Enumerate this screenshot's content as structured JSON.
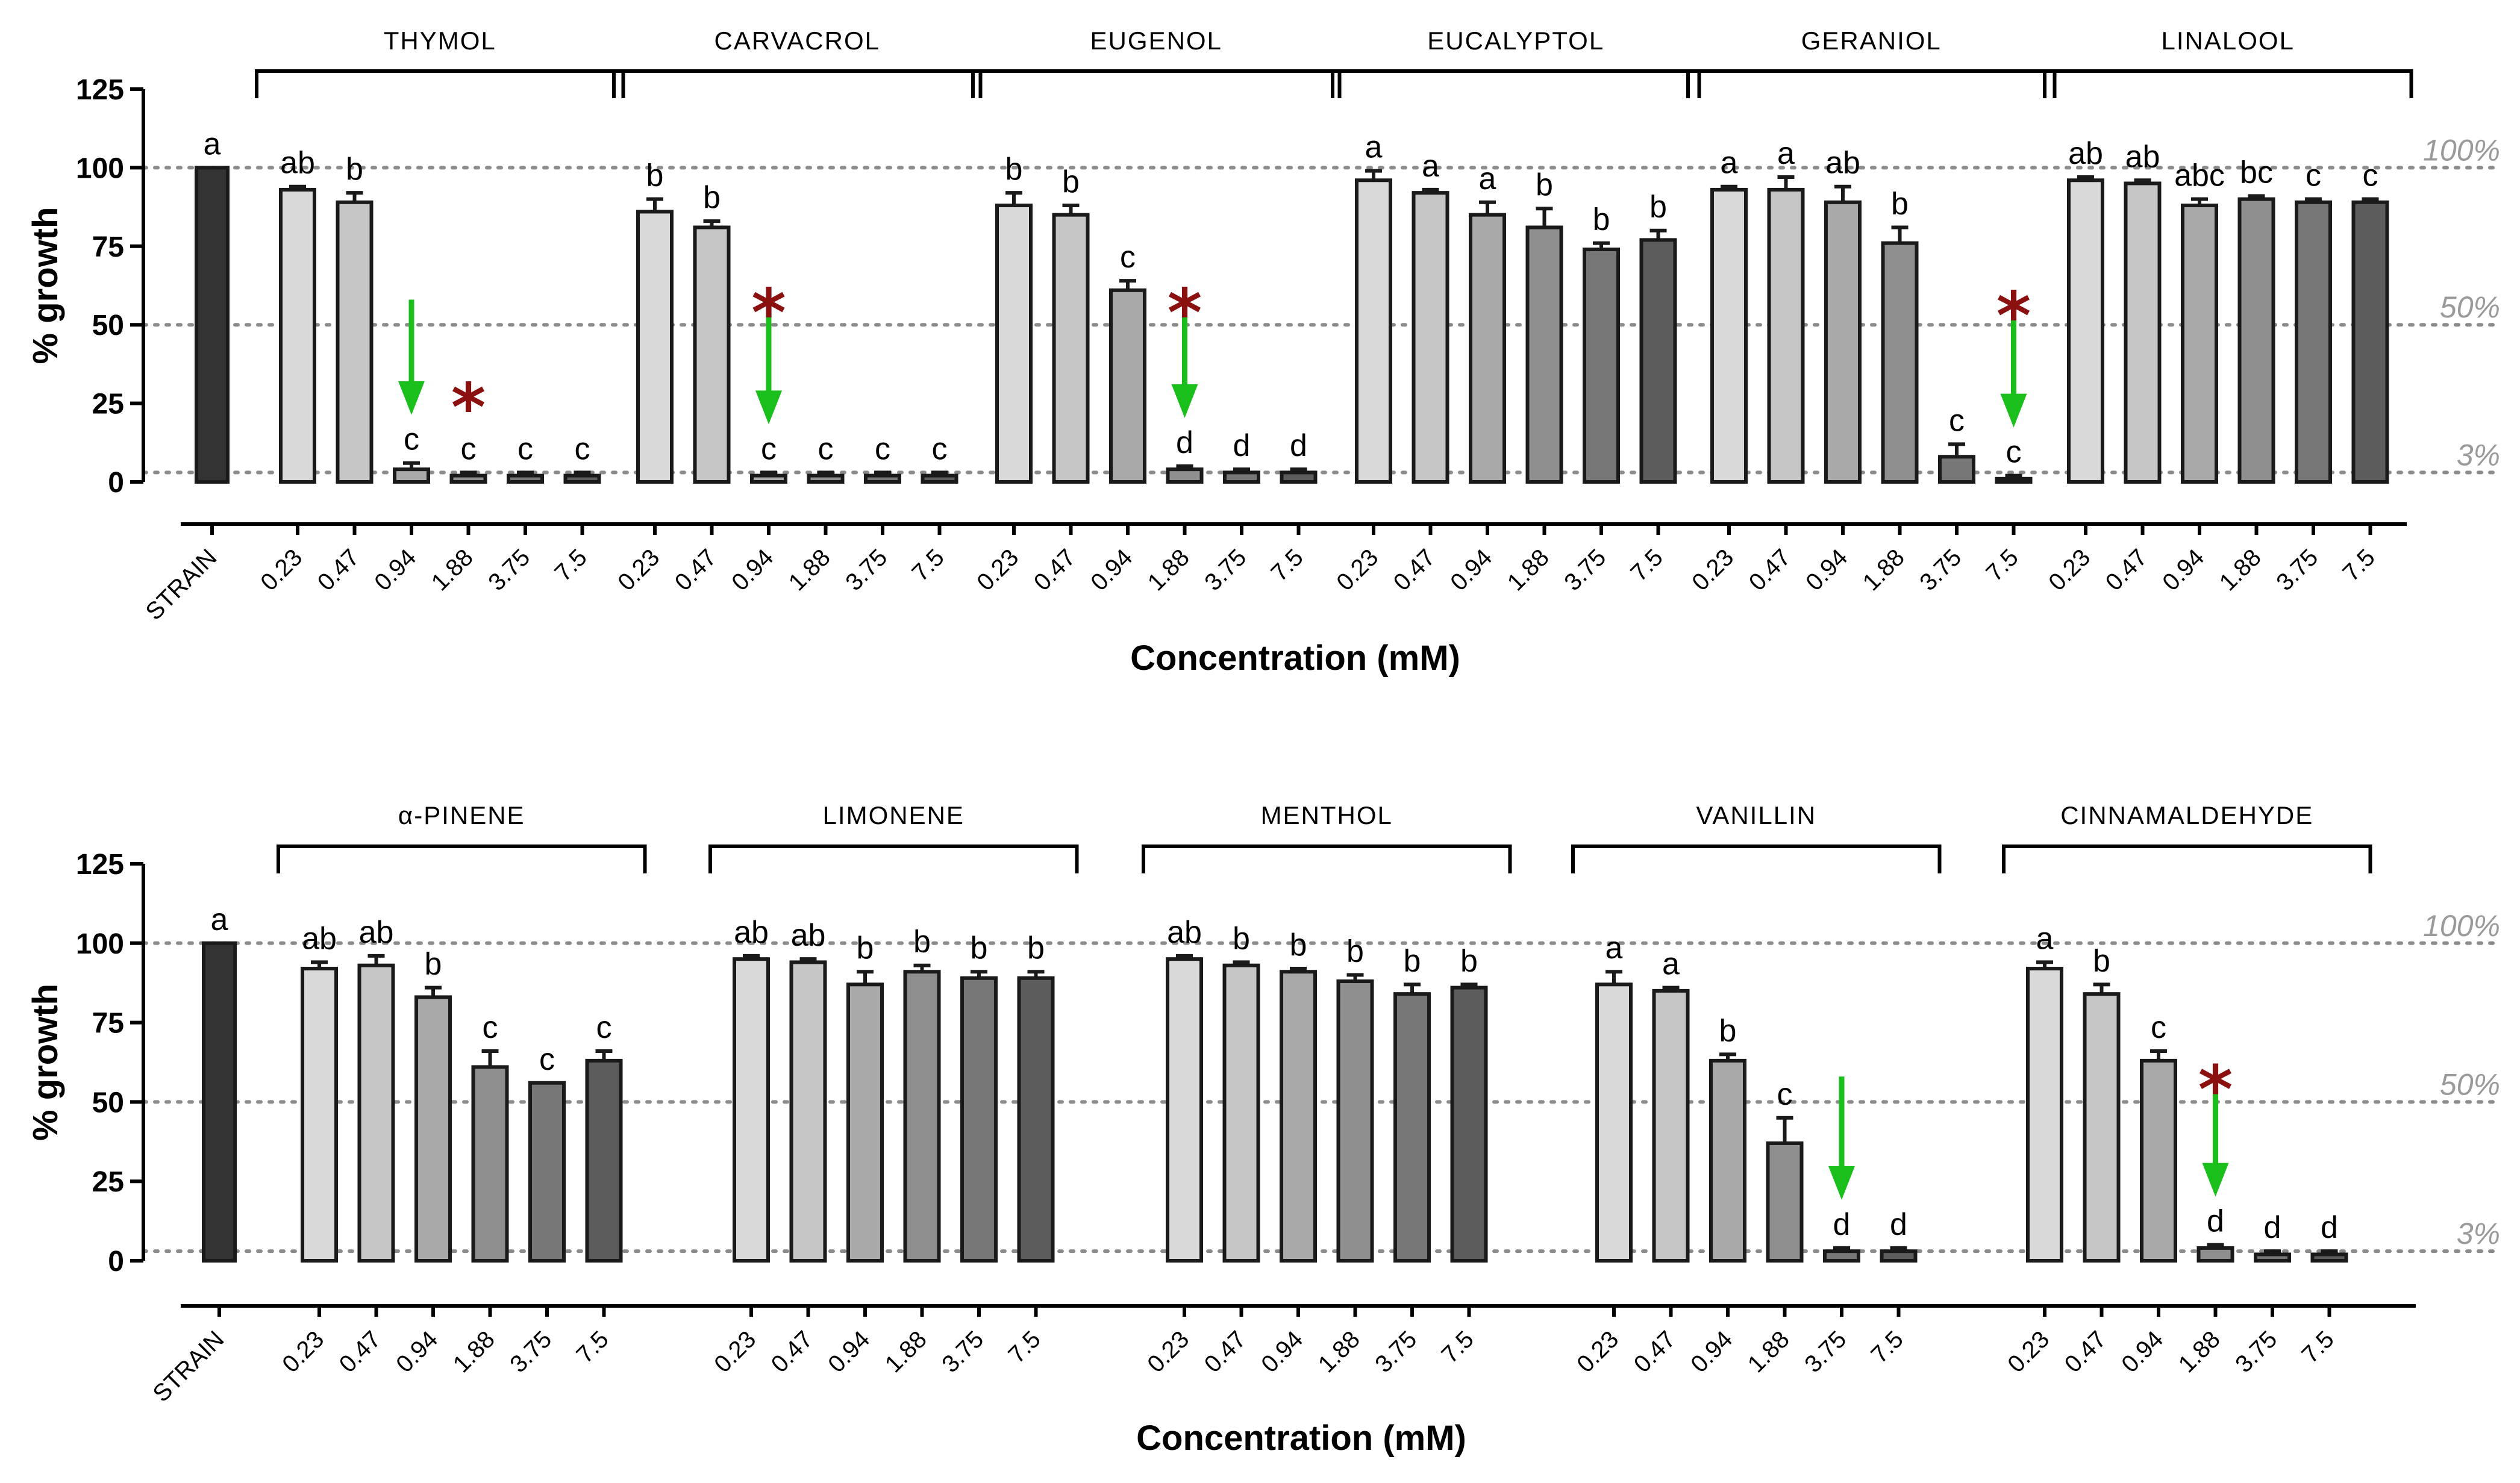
{
  "chart_data": [
    {
      "type": "bar",
      "xlabel": "Concentration (mM)",
      "ylabel": "% growth",
      "ylim": [
        0,
        125
      ],
      "yticks": [
        0,
        25,
        50,
        75,
        100,
        125
      ],
      "reference_lines": [
        {
          "value": 100,
          "label": "100%"
        },
        {
          "value": 50,
          "label": "50%"
        },
        {
          "value": 3,
          "label": "3%"
        }
      ],
      "control": {
        "label": "STRAIN",
        "value": 100,
        "error": 0,
        "sig": "a"
      },
      "concentrations": [
        "0.23",
        "0.47",
        "0.94",
        "1.88",
        "3.75",
        "7.5"
      ],
      "groups": [
        {
          "name": "THYMOL",
          "values": [
            93,
            89,
            4,
            2,
            2,
            2
          ],
          "errors": [
            1,
            3,
            2,
            1,
            1,
            1
          ],
          "sig": [
            "ab",
            "b",
            "c",
            "c",
            "c",
            "c"
          ],
          "arrow_index": 2,
          "star_index": 3
        },
        {
          "name": "CARVACROL",
          "values": [
            86,
            81,
            2,
            2,
            2,
            2
          ],
          "errors": [
            4,
            2,
            1,
            1,
            1,
            1
          ],
          "sig": [
            "b",
            "b",
            "c",
            "c",
            "c",
            "c"
          ],
          "arrow_index": 2,
          "star_index": 2
        },
        {
          "name": "EUGENOL",
          "values": [
            88,
            85,
            61,
            4,
            3,
            3
          ],
          "errors": [
            4,
            3,
            3,
            1,
            1,
            1
          ],
          "sig": [
            "b",
            "b",
            "c",
            "d",
            "d",
            "d"
          ],
          "arrow_index": 3,
          "star_index": 3
        },
        {
          "name": "EUCALYPTOL",
          "values": [
            96,
            92,
            85,
            81,
            74,
            77
          ],
          "errors": [
            3,
            1,
            4,
            6,
            2,
            3
          ],
          "sig": [
            "a",
            "a",
            "a",
            "b",
            "b",
            "b"
          ],
          "arrow_index": null,
          "star_index": null
        },
        {
          "name": "GERANIOL",
          "values": [
            93,
            93,
            89,
            76,
            8,
            1
          ],
          "errors": [
            1,
            4,
            5,
            5,
            4,
            1
          ],
          "sig": [
            "a",
            "a",
            "ab",
            "b",
            "c",
            "c"
          ],
          "arrow_index": 5,
          "star_index": 5
        },
        {
          "name": "LINALOOL",
          "values": [
            96,
            95,
            88,
            90,
            89,
            89
          ],
          "errors": [
            1,
            1,
            2,
            1,
            1,
            1
          ],
          "sig": [
            "ab",
            "ab",
            "abc",
            "bc",
            "c",
            "c"
          ],
          "arrow_index": null,
          "star_index": null
        }
      ]
    },
    {
      "type": "bar",
      "xlabel": "Concentration (mM)",
      "ylabel": "% growth",
      "ylim": [
        0,
        125
      ],
      "yticks": [
        0,
        25,
        50,
        75,
        100,
        125
      ],
      "reference_lines": [
        {
          "value": 100,
          "label": "100%"
        },
        {
          "value": 50,
          "label": "50%"
        },
        {
          "value": 3,
          "label": "3%"
        }
      ],
      "control": {
        "label": "STRAIN",
        "value": 100,
        "error": 0,
        "sig": "a"
      },
      "concentrations": [
        "0.23",
        "0.47",
        "0.94",
        "1.88",
        "3.75",
        "7.5"
      ],
      "groups": [
        {
          "name": "α-PINENE",
          "values": [
            92,
            93,
            83,
            61,
            56,
            63
          ],
          "errors": [
            2,
            3,
            3,
            5,
            0,
            3
          ],
          "sig": [
            "ab",
            "ab",
            "b",
            "c",
            "c",
            "c"
          ],
          "arrow_index": null,
          "star_index": null
        },
        {
          "name": "LIMONENE",
          "values": [
            95,
            94,
            87,
            91,
            89,
            89
          ],
          "errors": [
            1,
            1,
            4,
            2,
            2,
            2
          ],
          "sig": [
            "ab",
            "ab",
            "b",
            "b",
            "b",
            "b"
          ],
          "arrow_index": null,
          "star_index": null
        },
        {
          "name": "MENTHOL",
          "values": [
            95,
            93,
            91,
            88,
            84,
            86
          ],
          "errors": [
            1,
            1,
            1,
            2,
            3,
            1
          ],
          "sig": [
            "ab",
            "b",
            "b",
            "b",
            "b",
            "b"
          ],
          "arrow_index": null,
          "star_index": null
        },
        {
          "name": "VANILLIN",
          "values": [
            87,
            85,
            63,
            37,
            3,
            3
          ],
          "errors": [
            4,
            1,
            2,
            8,
            1,
            1
          ],
          "sig": [
            "a",
            "a",
            "b",
            "c",
            "d",
            "d"
          ],
          "arrow_index": 4,
          "star_index": null
        },
        {
          "name": "CINNAMALDEHYDE",
          "values": [
            92,
            84,
            63,
            4,
            2,
            2
          ],
          "errors": [
            2,
            3,
            3,
            1,
            1,
            1
          ],
          "sig": [
            "a",
            "b",
            "c",
            "d",
            "d",
            "d"
          ],
          "arrow_index": 3,
          "star_index": 3
        }
      ]
    }
  ]
}
